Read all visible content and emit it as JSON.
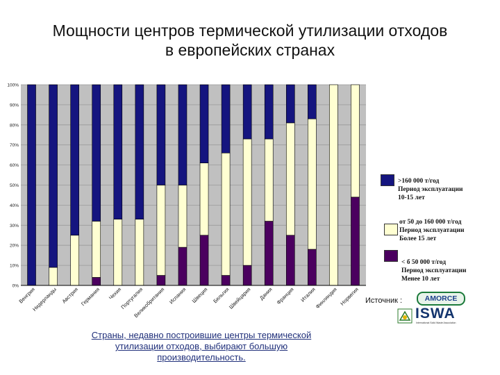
{
  "title": {
    "line1": "Мощности центров термической утилизации отходов",
    "line2": "в европейских странах"
  },
  "chart_data": {
    "type": "bar",
    "stacked": true,
    "ylim": [
      0,
      100
    ],
    "yticks": [
      "0%",
      "10%",
      "20%",
      "30%",
      "40%",
      "50%",
      "60%",
      "70%",
      "80%",
      "90%",
      "100%"
    ],
    "categories": [
      "Венгрия",
      "Нидерланды",
      "Австрия",
      "Германия",
      "Чехия",
      "Португалия",
      "Великобритания",
      "Испания",
      "Швеция",
      "Бельгия",
      "Швейцария",
      "Дания",
      "Франция",
      "Италия",
      "Финляндия",
      "Норвегия"
    ],
    "series": [
      {
        "name": "< б 50 000 т/год",
        "color": "#4b005f",
        "values": [
          0,
          0,
          0,
          4,
          0,
          0,
          5,
          19,
          25,
          5,
          10,
          32,
          25,
          18,
          0,
          44
        ]
      },
      {
        "name": "от 50 до 160 000 т/год",
        "color": "#ffffd2",
        "values": [
          0,
          9,
          25,
          28,
          33,
          33,
          45,
          31,
          36,
          61,
          63,
          41,
          56,
          65,
          100,
          56
        ]
      },
      {
        "name": ">160 000 т/год",
        "color": "#15157f",
        "values": [
          100,
          91,
          75,
          68,
          67,
          67,
          50,
          50,
          39,
          34,
          27,
          27,
          19,
          17,
          0,
          0
        ]
      }
    ]
  },
  "legend": [
    {
      "color": "#15157f",
      "lines": [
        ">160 000 т/год",
        "Период эксплуатации",
        "10-15 лет"
      ]
    },
    {
      "color": "#ffffd2",
      "lines": [
        " от 50 до 160 000 т/год",
        "Период эксплуатации",
        "Более 15 лет"
      ]
    },
    {
      "color": "#4b005f",
      "lines": [
        "< б 50 000 т/год",
        "Период эксплуатации",
        "Менее 10 лет"
      ]
    }
  ],
  "source_label": "Источник :",
  "logos": {
    "amorce": "AMORCE",
    "isan": "ISWA",
    "isan_sub": "International Solid Waste Association"
  },
  "footer": {
    "line1": "Страны, недавно построившие центры термической",
    "line2": "утилизации отходов, выбирают большую",
    "line3": "производительность."
  }
}
